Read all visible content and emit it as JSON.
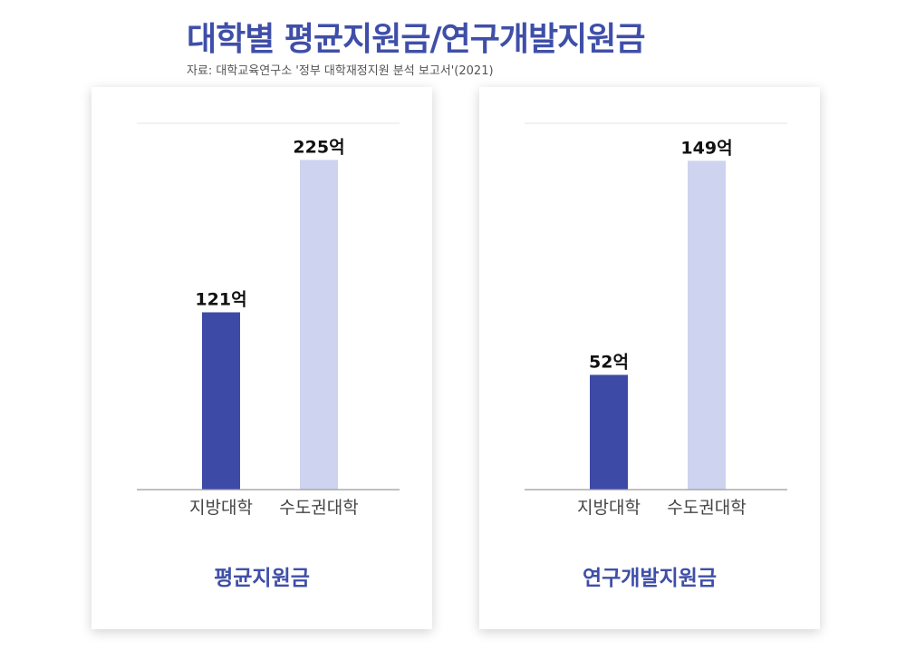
{
  "header": {
    "title": "대학별 평균지원금/연구개발지원금",
    "source": "자료: 대학교육연구소 '정부 대학재정지원 분석 보고서'(2021)"
  },
  "colors": {
    "accent": "#3f4fa8",
    "bar_local": "#3d4ba6",
    "bar_capital": "#ced3f0",
    "axis": "#9a9a9a",
    "grid": "#e3e3e3"
  },
  "chart_data": [
    {
      "type": "bar",
      "title": "평균지원금",
      "categories": [
        "지방대학",
        "수도권대학"
      ],
      "values": [
        121,
        225
      ],
      "value_labels": [
        "121억",
        "225억"
      ],
      "unit": "억",
      "ylim": [
        0,
        250
      ],
      "grid": false,
      "legend": "none"
    },
    {
      "type": "bar",
      "title": "연구개발지원금",
      "categories": [
        "지방대학",
        "수도권대학"
      ],
      "values": [
        52,
        149
      ],
      "value_labels": [
        "52억",
        "149억"
      ],
      "unit": "억",
      "ylim": [
        0,
        166
      ],
      "grid": false,
      "legend": "none"
    }
  ]
}
